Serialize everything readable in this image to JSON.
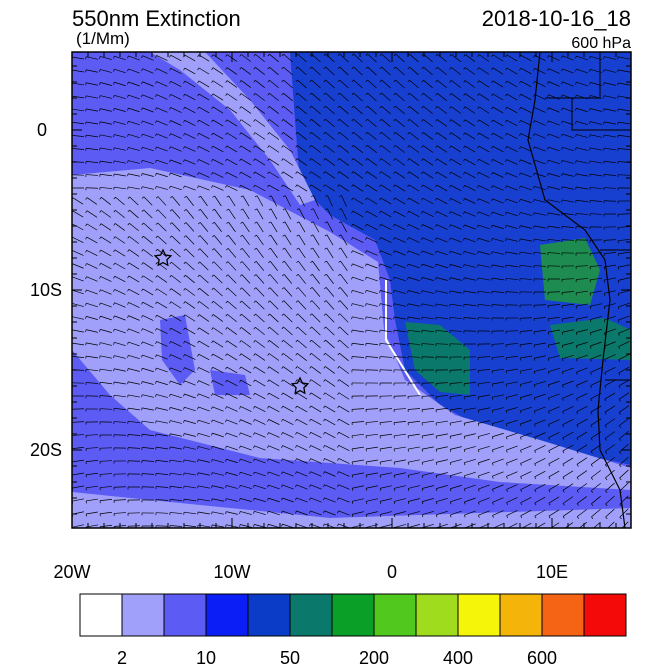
{
  "header": {
    "title": "550nm Extinction",
    "units": "(1/Mm)",
    "time": "2018-10-16_18",
    "level": "600 hPa"
  },
  "map": {
    "x_labels": [
      "20W",
      "10W",
      "0",
      "10E"
    ],
    "y_labels": [
      "0",
      "10S",
      "20S"
    ]
  },
  "colorbar": {
    "colors": [
      "#ffffff",
      "#a0a0fa",
      "#5c5cf5",
      "#0a1ef5",
      "#0a3cc8",
      "#0a786a",
      "#0aa028",
      "#50c81e",
      "#a0dc1e",
      "#f5f50a",
      "#f5b40a",
      "#f56414",
      "#f50a0a"
    ],
    "labels": [
      "2",
      "10",
      "50",
      "200",
      "400",
      "600"
    ]
  }
}
